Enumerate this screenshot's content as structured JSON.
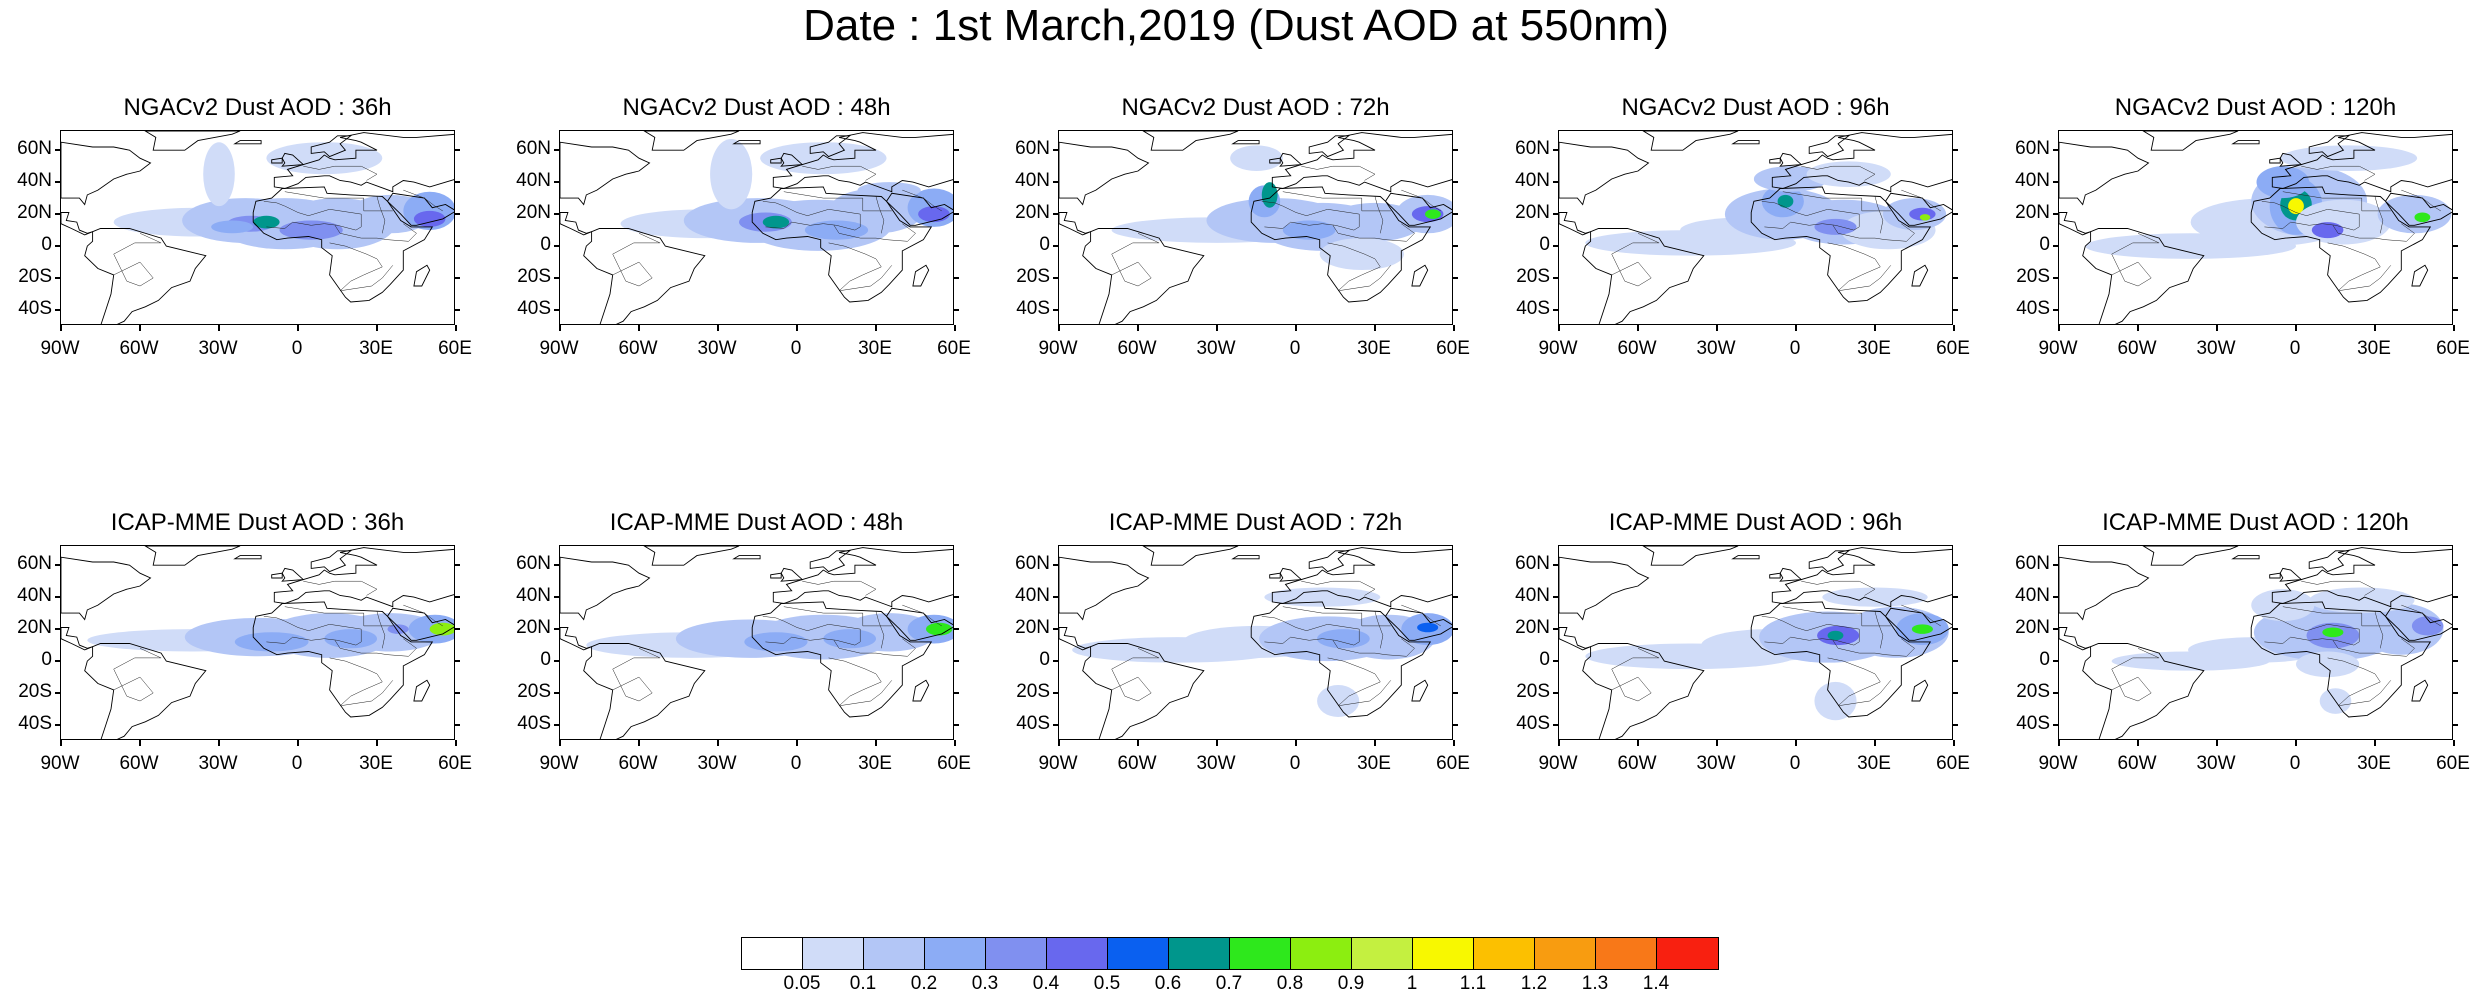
{
  "main_title": "Date : 1st March,2019 (Dust AOD at 550nm)",
  "lat_ticks": [
    "60N",
    "40N",
    "20N",
    "0",
    "20S",
    "40S"
  ],
  "lon_ticks": [
    "90W",
    "60W",
    "30W",
    "0",
    "30E",
    "60E"
  ],
  "rows": [
    {
      "model": "NGACv2",
      "panels": [
        {
          "title": "NGACv2 Dust AOD : 36h",
          "lead": "36h"
        },
        {
          "title": "NGACv2 Dust AOD : 48h",
          "lead": "48h"
        },
        {
          "title": "NGACv2 Dust AOD : 72h",
          "lead": "72h"
        },
        {
          "title": "NGACv2 Dust AOD : 96h",
          "lead": "96h"
        },
        {
          "title": "NGACv2 Dust AOD : 120h",
          "lead": "120h"
        }
      ]
    },
    {
      "model": "ICAP-MME",
      "panels": [
        {
          "title": "ICAP-MME Dust AOD : 36h",
          "lead": "36h"
        },
        {
          "title": "ICAP-MME Dust AOD : 48h",
          "lead": "48h"
        },
        {
          "title": "ICAP-MME Dust AOD : 72h",
          "lead": "72h"
        },
        {
          "title": "ICAP-MME Dust AOD : 96h",
          "lead": "96h"
        },
        {
          "title": "ICAP-MME Dust AOD : 120h",
          "lead": "120h"
        }
      ]
    }
  ],
  "colorbar": {
    "labels": [
      "0.05",
      "0.1",
      "0.2",
      "0.3",
      "0.4",
      "0.5",
      "0.6",
      "0.7",
      "0.8",
      "0.9",
      "1",
      "1.1",
      "1.2",
      "1.3",
      "1.4"
    ],
    "colors": [
      "#ffffff",
      "#d0dcf8",
      "#b3c6f6",
      "#8cacf5",
      "#8090f0",
      "#6868ee",
      "#0a60f0",
      "#00968c",
      "#2ee81c",
      "#8cee10",
      "#c4f040",
      "#f8f800",
      "#fcc000",
      "#f89c10",
      "#f87818",
      "#f82010"
    ]
  }
}
